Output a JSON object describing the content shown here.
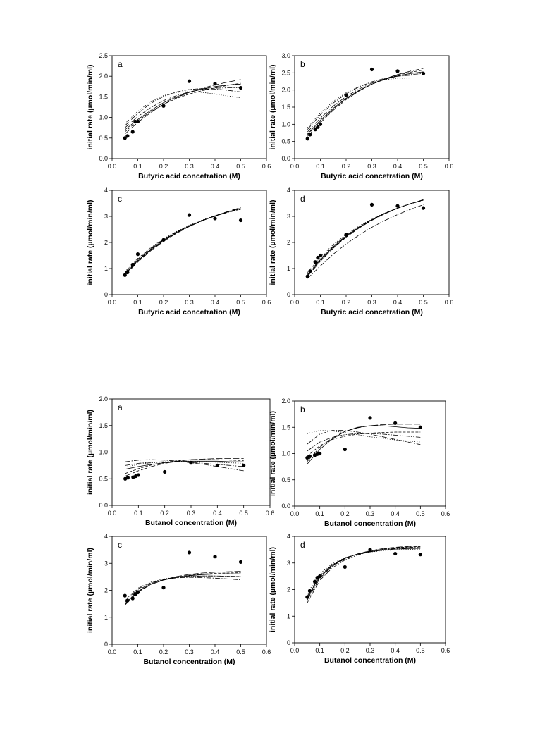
{
  "chart_data": [
    {
      "type": "scatter",
      "panel_label": "a",
      "xlabel": "Butyric acid concetration (M)",
      "ylabel": "initial rate (µmol/min/ml)",
      "xlim": [
        0,
        0.6
      ],
      "ylim": [
        0,
        2.5
      ],
      "xticks": [
        0.0,
        0.1,
        0.2,
        0.3,
        0.4,
        0.5,
        0.6
      ],
      "yticks": [
        0.0,
        0.5,
        1.0,
        1.5,
        2.0,
        2.5
      ],
      "x": [
        0.05,
        0.06,
        0.08,
        0.09,
        0.1,
        0.2,
        0.3,
        0.4,
        0.5
      ],
      "y": [
        0.5,
        0.55,
        0.65,
        0.9,
        0.9,
        1.28,
        1.88,
        1.82,
        1.72
      ],
      "fits": [
        {
          "style": "solid",
          "y": [
            0.7,
            0.95,
            1.17,
            1.36,
            1.5,
            1.61,
            1.69,
            1.75,
            1.79,
            1.81
          ]
        },
        {
          "style": "longdash",
          "y": [
            0.6,
            0.88,
            1.12,
            1.32,
            1.48,
            1.61,
            1.71,
            1.79,
            1.86,
            1.92
          ]
        },
        {
          "style": "dashdot",
          "y": [
            0.8,
            1.1,
            1.34,
            1.51,
            1.62,
            1.68,
            1.7,
            1.69,
            1.66,
            1.62
          ]
        },
        {
          "style": "dotted",
          "y": [
            0.85,
            1.15,
            1.38,
            1.53,
            1.61,
            1.63,
            1.61,
            1.57,
            1.52,
            1.48
          ]
        },
        {
          "style": "shortdash",
          "y": [
            0.65,
            0.92,
            1.14,
            1.32,
            1.46,
            1.57,
            1.65,
            1.72,
            1.78,
            1.83
          ]
        },
        {
          "style": "dashdotdot",
          "y": [
            0.75,
            1.02,
            1.24,
            1.41,
            1.53,
            1.62,
            1.68,
            1.71,
            1.72,
            1.72
          ]
        }
      ]
    },
    {
      "type": "scatter",
      "panel_label": "b",
      "xlabel": "Butyric acid concetration (M)",
      "ylabel": "initial rate (µmol/min/ml)",
      "xlim": [
        0,
        0.6
      ],
      "ylim": [
        0,
        3.0
      ],
      "xticks": [
        0.0,
        0.1,
        0.2,
        0.3,
        0.4,
        0.5,
        0.6
      ],
      "yticks": [
        0.0,
        0.5,
        1.0,
        1.5,
        2.0,
        2.5,
        3.0
      ],
      "x": [
        0.05,
        0.06,
        0.08,
        0.09,
        0.1,
        0.2,
        0.3,
        0.4,
        0.5
      ],
      "y": [
        0.58,
        0.7,
        0.85,
        0.92,
        1.0,
        1.85,
        2.6,
        2.55,
        2.48
      ],
      "fits": [
        {
          "style": "solid",
          "y": [
            0.72,
            1.12,
            1.47,
            1.76,
            1.99,
            2.17,
            2.31,
            2.41,
            2.48,
            2.53
          ]
        },
        {
          "style": "longdash",
          "y": [
            0.65,
            1.05,
            1.41,
            1.72,
            1.97,
            2.17,
            2.33,
            2.45,
            2.55,
            2.63
          ]
        },
        {
          "style": "dashdot",
          "y": [
            0.85,
            1.28,
            1.62,
            1.89,
            2.09,
            2.24,
            2.34,
            2.4,
            2.43,
            2.44
          ]
        },
        {
          "style": "dotted",
          "y": [
            0.9,
            1.33,
            1.67,
            1.92,
            2.1,
            2.22,
            2.3,
            2.34,
            2.35,
            2.35
          ]
        },
        {
          "style": "shortdash",
          "y": [
            0.7,
            1.09,
            1.44,
            1.74,
            1.98,
            2.17,
            2.32,
            2.43,
            2.52,
            2.58
          ]
        },
        {
          "style": "dashdotdot",
          "y": [
            0.78,
            1.18,
            1.53,
            1.81,
            2.03,
            2.2,
            2.32,
            2.4,
            2.45,
            2.48
          ]
        }
      ]
    },
    {
      "type": "scatter",
      "panel_label": "c",
      "xlabel": "Butyric acid concetration (M)",
      "ylabel": "initial rate (µmol/min/ml)",
      "xlim": [
        0,
        0.6
      ],
      "ylim": [
        0,
        4
      ],
      "xticks": [
        0.0,
        0.1,
        0.2,
        0.3,
        0.4,
        0.5,
        0.6
      ],
      "yticks": [
        0,
        1,
        2,
        3,
        4
      ],
      "x": [
        0.05,
        0.06,
        0.08,
        0.1,
        0.2,
        0.3,
        0.4,
        0.5
      ],
      "y": [
        0.75,
        0.85,
        1.15,
        1.55,
        2.1,
        3.05,
        2.92,
        2.85
      ],
      "fits": [
        {
          "style": "solid",
          "y": [
            0.8,
            1.3,
            1.73,
            2.08,
            2.38,
            2.63,
            2.84,
            3.02,
            3.17,
            3.3
          ]
        },
        {
          "style": "longdash",
          "y": [
            0.75,
            1.25,
            1.68,
            2.04,
            2.35,
            2.61,
            2.83,
            3.02,
            3.19,
            3.34
          ]
        },
        {
          "style": "dashdot",
          "y": [
            0.85,
            1.36,
            1.78,
            2.12,
            2.4,
            2.64,
            2.84,
            3.01,
            3.15,
            3.27
          ]
        },
        {
          "style": "dotted",
          "y": [
            0.88,
            1.39,
            1.8,
            2.14,
            2.42,
            2.66,
            2.86,
            3.03,
            3.18,
            3.3
          ]
        },
        {
          "style": "shortdash",
          "y": [
            0.78,
            1.28,
            1.71,
            2.06,
            2.36,
            2.62,
            2.83,
            3.02,
            3.18,
            3.32
          ]
        },
        {
          "style": "dashdotdot",
          "y": [
            0.82,
            1.33,
            1.75,
            2.1,
            2.39,
            2.63,
            2.84,
            3.01,
            3.16,
            3.29
          ]
        }
      ]
    },
    {
      "type": "scatter",
      "panel_label": "d",
      "xlabel": "Butyric acid concetration (M)",
      "ylabel": "initial rate (µmol/min/ml)",
      "xlim": [
        0,
        0.6
      ],
      "ylim": [
        0,
        4
      ],
      "xticks": [
        0.0,
        0.1,
        0.2,
        0.3,
        0.4,
        0.5,
        0.6
      ],
      "yticks": [
        0,
        1,
        2,
        3,
        4
      ],
      "x": [
        0.05,
        0.06,
        0.08,
        0.09,
        0.1,
        0.2,
        0.3,
        0.4,
        0.5
      ],
      "y": [
        0.7,
        0.9,
        1.25,
        1.42,
        1.5,
        2.3,
        3.45,
        3.4,
        3.32
      ],
      "fits": [
        {
          "style": "solid",
          "y": [
            0.75,
            1.34,
            1.83,
            2.24,
            2.58,
            2.87,
            3.11,
            3.32,
            3.49,
            3.63
          ]
        },
        {
          "style": "longdash",
          "y": [
            0.7,
            1.28,
            1.78,
            2.2,
            2.55,
            2.85,
            3.1,
            3.31,
            3.49,
            3.64
          ]
        },
        {
          "style": "dashdot",
          "y": [
            0.62,
            1.1,
            1.55,
            1.94,
            2.28,
            2.58,
            2.84,
            3.07,
            3.27,
            3.45
          ]
        },
        {
          "style": "dotted",
          "y": [
            0.85,
            1.44,
            1.92,
            2.31,
            2.63,
            2.9,
            3.13,
            3.32,
            3.48,
            3.62
          ]
        },
        {
          "style": "shortdash",
          "y": [
            0.72,
            1.3,
            1.8,
            2.22,
            2.56,
            2.86,
            3.1,
            3.31,
            3.48,
            3.62
          ]
        },
        {
          "style": "dashdotdot",
          "y": [
            0.78,
            1.37,
            1.86,
            2.27,
            2.6,
            2.88,
            3.12,
            3.32,
            3.49,
            3.63
          ]
        }
      ]
    },
    {
      "type": "scatter",
      "panel_label": "a",
      "xlabel": "Butanol concentration (M)",
      "ylabel": "initial rate (µmol/min/ml)",
      "xlim": [
        0,
        0.6
      ],
      "ylim": [
        0,
        2.0
      ],
      "xticks": [
        0.0,
        0.1,
        0.2,
        0.3,
        0.4,
        0.5,
        0.6
      ],
      "yticks": [
        0.0,
        0.5,
        1.0,
        1.5,
        2.0
      ],
      "x": [
        0.05,
        0.06,
        0.08,
        0.09,
        0.1,
        0.2,
        0.3,
        0.4,
        0.5
      ],
      "y": [
        0.5,
        0.52,
        0.53,
        0.55,
        0.57,
        0.63,
        0.8,
        0.75,
        0.75
      ],
      "fits": [
        {
          "style": "solid",
          "y": [
            0.68,
            0.73,
            0.77,
            0.8,
            0.82,
            0.83,
            0.83,
            0.83,
            0.82,
            0.82
          ]
        },
        {
          "style": "longdash",
          "y": [
            0.55,
            0.65,
            0.73,
            0.79,
            0.83,
            0.86,
            0.87,
            0.88,
            0.88,
            0.88
          ]
        },
        {
          "style": "dashdot",
          "y": [
            0.82,
            0.85,
            0.86,
            0.85,
            0.83,
            0.8,
            0.77,
            0.73,
            0.69,
            0.65
          ]
        },
        {
          "style": "dotted",
          "y": [
            0.72,
            0.77,
            0.8,
            0.82,
            0.83,
            0.83,
            0.82,
            0.81,
            0.8,
            0.79
          ]
        },
        {
          "style": "shortdash",
          "y": [
            0.6,
            0.69,
            0.76,
            0.81,
            0.84,
            0.86,
            0.86,
            0.86,
            0.85,
            0.84
          ]
        },
        {
          "style": "dashdotdot",
          "y": [
            0.75,
            0.79,
            0.81,
            0.82,
            0.82,
            0.81,
            0.79,
            0.77,
            0.75,
            0.73
          ]
        }
      ]
    },
    {
      "type": "scatter",
      "panel_label": "b",
      "xlabel": "Butanol concentration (M)",
      "ylabel": "initial rate (µmol/min/ml)",
      "xlim": [
        0,
        0.6
      ],
      "ylim": [
        0,
        2.0
      ],
      "xticks": [
        0.0,
        0.1,
        0.2,
        0.3,
        0.4,
        0.5,
        0.6
      ],
      "yticks": [
        0.0,
        0.5,
        1.0,
        1.5,
        2.0
      ],
      "x": [
        0.05,
        0.06,
        0.08,
        0.09,
        0.1,
        0.2,
        0.3,
        0.4,
        0.5
      ],
      "y": [
        0.92,
        0.95,
        0.97,
        0.99,
        1.0,
        1.08,
        1.68,
        1.58,
        1.5
      ],
      "fits": [
        {
          "style": "solid",
          "y": [
            0.8,
            1.08,
            1.28,
            1.42,
            1.5,
            1.53,
            1.53,
            1.51,
            1.49,
            1.48
          ]
        },
        {
          "style": "longdash",
          "y": [
            0.85,
            1.12,
            1.3,
            1.42,
            1.49,
            1.53,
            1.55,
            1.56,
            1.56,
            1.56
          ]
        },
        {
          "style": "dashdot",
          "y": [
            1.18,
            1.37,
            1.44,
            1.44,
            1.41,
            1.37,
            1.32,
            1.27,
            1.22,
            1.17
          ]
        },
        {
          "style": "dotted",
          "y": [
            1.38,
            1.44,
            1.43,
            1.4,
            1.36,
            1.32,
            1.29,
            1.26,
            1.24,
            1.22
          ]
        },
        {
          "style": "shortdash",
          "y": [
            0.95,
            1.15,
            1.27,
            1.33,
            1.37,
            1.39,
            1.4,
            1.41,
            1.41,
            1.41
          ]
        },
        {
          "style": "dashdotdot",
          "y": [
            1.05,
            1.22,
            1.31,
            1.36,
            1.38,
            1.38,
            1.37,
            1.35,
            1.33,
            1.31
          ]
        }
      ]
    },
    {
      "type": "scatter",
      "panel_label": "c",
      "xlabel": "Butanol concentration (M)",
      "ylabel": "initial rate (µmol/min/ml)",
      "xlim": [
        0,
        0.6
      ],
      "ylim": [
        0,
        4
      ],
      "xticks": [
        0.0,
        0.1,
        0.2,
        0.3,
        0.4,
        0.5,
        0.6
      ],
      "yticks": [
        0,
        1,
        2,
        3,
        4
      ],
      "x": [
        0.05,
        0.06,
        0.08,
        0.09,
        0.1,
        0.2,
        0.3,
        0.4,
        0.5
      ],
      "y": [
        1.8,
        1.62,
        1.7,
        1.85,
        1.92,
        2.1,
        3.4,
        3.25,
        3.05
      ],
      "fits": [
        {
          "style": "solid",
          "y": [
            1.5,
            1.96,
            2.22,
            2.38,
            2.48,
            2.54,
            2.58,
            2.6,
            2.61,
            2.61
          ]
        },
        {
          "style": "longdash",
          "y": [
            1.45,
            1.93,
            2.21,
            2.39,
            2.51,
            2.59,
            2.64,
            2.67,
            2.69,
            2.7
          ]
        },
        {
          "style": "dashdot",
          "y": [
            1.6,
            2.05,
            2.28,
            2.4,
            2.46,
            2.48,
            2.47,
            2.45,
            2.42,
            2.39
          ]
        },
        {
          "style": "dotted",
          "y": [
            1.65,
            2.08,
            2.3,
            2.42,
            2.49,
            2.52,
            2.53,
            2.53,
            2.52,
            2.51
          ]
        },
        {
          "style": "shortdash",
          "y": [
            1.48,
            1.95,
            2.22,
            2.38,
            2.49,
            2.56,
            2.6,
            2.63,
            2.64,
            2.65
          ]
        },
        {
          "style": "dashdotdot",
          "y": [
            1.55,
            2.0,
            2.25,
            2.39,
            2.47,
            2.51,
            2.53,
            2.53,
            2.52,
            2.51
          ]
        }
      ]
    },
    {
      "type": "scatter",
      "panel_label": "d",
      "xlabel": "Butanol concentration (M)",
      "ylabel": "initial rate (µmol/min/ml)",
      "xlim": [
        0,
        0.6
      ],
      "ylim": [
        0,
        4
      ],
      "xticks": [
        0.0,
        0.1,
        0.2,
        0.3,
        0.4,
        0.5,
        0.6
      ],
      "yticks": [
        0,
        1,
        2,
        3,
        4
      ],
      "x": [
        0.05,
        0.06,
        0.08,
        0.09,
        0.1,
        0.2,
        0.3,
        0.4,
        0.5
      ],
      "y": [
        1.72,
        1.95,
        2.3,
        2.45,
        2.5,
        2.85,
        3.5,
        3.35,
        3.32
      ],
      "fits": [
        {
          "style": "solid",
          "y": [
            1.7,
            2.5,
            2.92,
            3.18,
            3.33,
            3.42,
            3.48,
            3.52,
            3.54,
            3.55
          ]
        },
        {
          "style": "longdash",
          "y": [
            1.6,
            2.42,
            2.88,
            3.16,
            3.34,
            3.46,
            3.54,
            3.59,
            3.62,
            3.64
          ]
        },
        {
          "style": "dashdot",
          "y": [
            1.5,
            2.35,
            2.82,
            3.11,
            3.3,
            3.42,
            3.5,
            3.55,
            3.58,
            3.6
          ]
        },
        {
          "style": "dotted",
          "y": [
            1.85,
            2.6,
            2.98,
            3.2,
            3.33,
            3.41,
            3.46,
            3.49,
            3.51,
            3.52
          ]
        },
        {
          "style": "shortdash",
          "y": [
            1.65,
            2.46,
            2.9,
            3.17,
            3.34,
            3.45,
            3.52,
            3.57,
            3.6,
            3.62
          ]
        },
        {
          "style": "dashdotdot",
          "y": [
            1.75,
            2.53,
            2.94,
            3.19,
            3.34,
            3.43,
            3.49,
            3.53,
            3.55,
            3.56
          ]
        }
      ]
    }
  ]
}
